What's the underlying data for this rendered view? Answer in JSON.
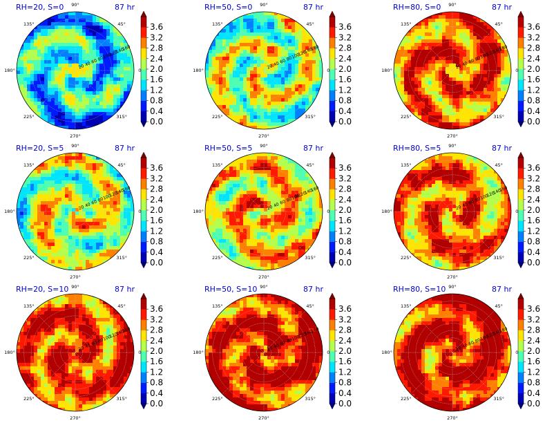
{
  "chart_data": {
    "type": "heatmap",
    "layout": "polar 3x3 grid",
    "time_label": "87 hr",
    "colorbar": {
      "ticks": [
        "0.0",
        "0.4",
        "0.8",
        "1.2",
        "1.6",
        "2.0",
        "2.4",
        "2.8",
        "3.2",
        "3.6"
      ],
      "range": [
        0.0,
        4.0
      ],
      "colormap": "jet",
      "extend": "both"
    },
    "angle_ticks": [
      "0°",
      "45°",
      "90°",
      "135°",
      "180°",
      "225°",
      "270°",
      "315°"
    ],
    "radial_ticks": [
      "20",
      "40",
      "60",
      "80",
      "100",
      "120",
      "140",
      "160"
    ],
    "panels": [
      {
        "title": "RH=20, S=0",
        "level": 0.45,
        "eye": "open"
      },
      {
        "title": "RH=50, S=0",
        "level": 0.62,
        "eye": "open"
      },
      {
        "title": "RH=80, S=0",
        "level": 0.82,
        "eye": "open"
      },
      {
        "title": "RH=20, S=5",
        "level": 0.62,
        "eye": "closed"
      },
      {
        "title": "RH=50, S=5",
        "level": 0.7,
        "eye": "closed"
      },
      {
        "title": "RH=80, S=5",
        "level": 0.8,
        "eye": "closed"
      },
      {
        "title": "RH=20, S=10",
        "level": 0.84,
        "eye": "closed"
      },
      {
        "title": "RH=50, S=10",
        "level": 0.9,
        "eye": "closed"
      },
      {
        "title": "RH=80, S=10",
        "level": 0.9,
        "eye": "closed"
      }
    ]
  },
  "colors": {
    "title": "#0000cc",
    "grid": "#c8c8c8",
    "text": "#000000"
  }
}
